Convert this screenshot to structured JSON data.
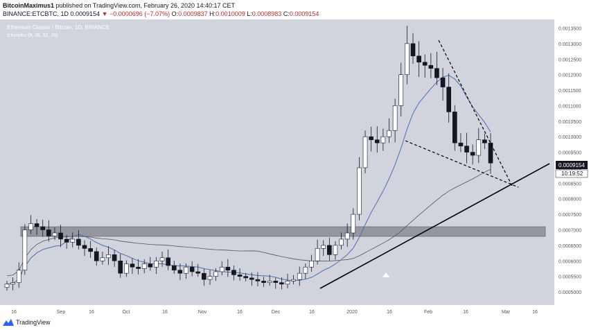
{
  "header": {
    "author": "BitcoinMaximus1",
    "published": "published on TradingView.com, February 26, 2020 14:40:17 CET",
    "symbol": "BINANCE:ETCBTC, 1D",
    "last": "0.0009154",
    "change": "▼ −0.0000696 (−7.07%)",
    "open_label": "O:",
    "open": "0.0009837",
    "high_label": "H:",
    "high": "0.0010009",
    "low_label": "L:",
    "low": "0.0008983",
    "close_label": "C:",
    "close": "0.0009154"
  },
  "chart_data": {
    "type": "candlestick",
    "title": "Ethereum Classic / Bitcoin, 1D, BINANCE",
    "indicator": "Ichimoku (9, 26, 52, 26)",
    "ylim": [
      0.00048,
      0.00136
    ],
    "y_ticks": [
      "0.0013500",
      "0.0013000",
      "0.0012500",
      "0.0012000",
      "0.0011500",
      "0.0011000",
      "0.0010500",
      "0.0010000",
      "0.0009500",
      "0.0009000",
      "0.0008500",
      "0.0008000",
      "0.0007500",
      "0.0007000",
      "0.0006500",
      "0.0006000",
      "0.0005500",
      "0.0005000"
    ],
    "x_ticks": [
      "16",
      "Sep",
      "16",
      "Oct",
      "16",
      "Nov",
      "16",
      "Dec",
      "16",
      "2020",
      "16",
      "Feb",
      "16",
      "Mar",
      "16"
    ],
    "last_price_label": "0.0009154",
    "countdown_label": "10:19:52",
    "colors": {
      "background": "#d1d4dc",
      "up": "#ffffff",
      "down": "#131722",
      "ma_blue": "#4a6fb5",
      "ma_gray": "#555555",
      "zone": "#8a8d95"
    },
    "support_zone": [
      0.00069,
      0.00072
    ],
    "series": [
      {
        "name": "ETCBTC",
        "close": [
          0.000525,
          0.00053,
          0.00057,
          0.0007,
          0.00072,
          0.00071,
          0.0007,
          0.00068,
          0.00069,
          0.00067,
          0.00066,
          0.00067,
          0.00065,
          0.00064,
          0.00063,
          0.0006,
          0.00061,
          0.00062,
          0.0006,
          0.00056,
          0.00059,
          0.00058,
          0.000575,
          0.00059,
          0.00058,
          0.0006,
          0.00061,
          0.000585,
          0.00057,
          0.00056,
          0.00058,
          0.000565,
          0.00056,
          0.00054,
          0.00055,
          0.000565,
          0.00058,
          0.00057,
          0.000555,
          0.00055,
          0.000545,
          0.00054,
          0.000535,
          0.00053,
          0.000535,
          0.00053,
          0.000525,
          0.000535,
          0.00054,
          0.00056,
          0.00058,
          0.0006,
          0.00064,
          0.00065,
          0.00062,
          0.00065,
          0.00067,
          0.00069,
          0.00075,
          0.0009,
          0.001,
          0.00099,
          0.00098,
          0.001,
          0.00102,
          0.0011,
          0.0012,
          0.0013,
          0.00126,
          0.00124,
          0.00123,
          0.00122,
          0.00119,
          0.00116,
          0.00108,
          0.00098,
          0.00097,
          0.00095,
          0.00094,
          0.00099,
          0.00098,
          0.000915
        ]
      }
    ]
  }
}
